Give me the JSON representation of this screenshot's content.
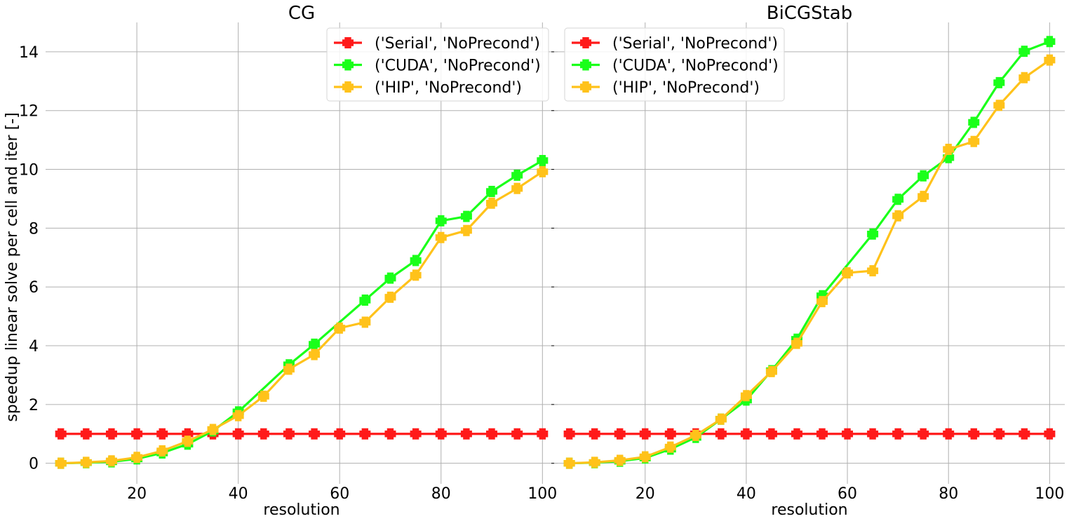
{
  "chart_data": [
    {
      "type": "line",
      "title": "CG",
      "xlabel": "resolution",
      "ylabel": "speedup linear solve per cell and iter [-]",
      "xlim": [
        2,
        103
      ],
      "ylim": [
        -0.7,
        15
      ],
      "xticks": [
        20,
        40,
        60,
        80,
        100
      ],
      "yticks": [
        0,
        2,
        4,
        6,
        8,
        10,
        12,
        14
      ],
      "grid": true,
      "legend_position": "top-right",
      "x": [
        5,
        10,
        15,
        20,
        25,
        30,
        35,
        40,
        45,
        50,
        55,
        60,
        65,
        70,
        75,
        80,
        85,
        90,
        95,
        100
      ],
      "series": [
        {
          "name": "('Serial', 'NoPrecond')",
          "color": "#ff1a1a",
          "x": [
            5,
            10,
            15,
            20,
            25,
            30,
            35,
            40,
            45,
            50,
            55,
            60,
            65,
            70,
            75,
            80,
            85,
            90,
            95,
            100
          ],
          "values": [
            1,
            1,
            1,
            1,
            1,
            1,
            1,
            1,
            1,
            1,
            1,
            1,
            1,
            1,
            1,
            1,
            1,
            1,
            1,
            1
          ]
        },
        {
          "name": "('CUDA', 'NoPrecond')",
          "color": "#1aff1a",
          "x": [
            5,
            10,
            15,
            20,
            25,
            30,
            35,
            40,
            45,
            50,
            55,
            60,
            65,
            70,
            75,
            80,
            85,
            90,
            95,
            100
          ],
          "values": [
            0.0,
            0.02,
            0.05,
            0.15,
            0.35,
            0.65,
            1.1,
            1.75,
            null,
            3.35,
            4.05,
            null,
            5.55,
            6.3,
            6.9,
            8.25,
            8.4,
            9.25,
            9.8,
            10.3
          ]
        },
        {
          "name": "('HIP', 'NoPrecond')",
          "color": "#ffc21a",
          "x": [
            5,
            10,
            15,
            20,
            25,
            30,
            35,
            40,
            45,
            50,
            55,
            60,
            65,
            70,
            75,
            80,
            85,
            90,
            95,
            100
          ],
          "values": [
            0.0,
            0.03,
            0.08,
            0.2,
            0.42,
            0.75,
            1.15,
            1.62,
            2.28,
            3.2,
            3.7,
            4.6,
            4.8,
            5.65,
            6.4,
            7.68,
            7.92,
            8.85,
            9.35,
            9.92
          ]
        }
      ]
    },
    {
      "type": "line",
      "title": "BiCGStab",
      "xlabel": "resolution",
      "ylabel": "",
      "xlim": [
        2,
        103
      ],
      "ylim": [
        -0.7,
        15
      ],
      "xticks": [
        20,
        40,
        60,
        80,
        100
      ],
      "yticks": [
        0,
        2,
        4,
        6,
        8,
        10,
        12,
        14
      ],
      "grid": true,
      "legend_position": "top-left",
      "series": [
        {
          "name": "('Serial', 'NoPrecond')",
          "color": "#ff1a1a",
          "x": [
            5,
            10,
            15,
            20,
            25,
            30,
            35,
            40,
            45,
            50,
            55,
            60,
            65,
            70,
            75,
            80,
            85,
            90,
            95,
            100
          ],
          "values": [
            1,
            1,
            1,
            1,
            1,
            1,
            1,
            1,
            1,
            1,
            1,
            1,
            1,
            1,
            1,
            1,
            1,
            1,
            1,
            1
          ]
        },
        {
          "name": "('CUDA', 'NoPrecond')",
          "color": "#1aff1a",
          "x": [
            5,
            10,
            15,
            20,
            25,
            30,
            35,
            40,
            45,
            50,
            55,
            60,
            65,
            70,
            75,
            80,
            85,
            90,
            95,
            100
          ],
          "values": [
            0.0,
            0.02,
            0.07,
            0.18,
            0.48,
            0.88,
            1.5,
            2.15,
            3.15,
            4.22,
            5.7,
            null,
            7.8,
            8.98,
            9.78,
            10.4,
            11.6,
            12.95,
            14.02,
            14.35
          ]
        },
        {
          "name": "('HIP', 'NoPrecond')",
          "color": "#ffc21a",
          "x": [
            5,
            10,
            15,
            20,
            25,
            30,
            35,
            40,
            45,
            50,
            55,
            60,
            65,
            70,
            75,
            80,
            85,
            90,
            95,
            100
          ],
          "values": [
            0.0,
            0.03,
            0.1,
            0.22,
            0.55,
            0.95,
            1.5,
            2.3,
            3.12,
            4.08,
            5.5,
            6.48,
            6.55,
            8.42,
            9.08,
            10.68,
            10.95,
            12.18,
            13.12,
            13.72
          ]
        }
      ]
    }
  ]
}
